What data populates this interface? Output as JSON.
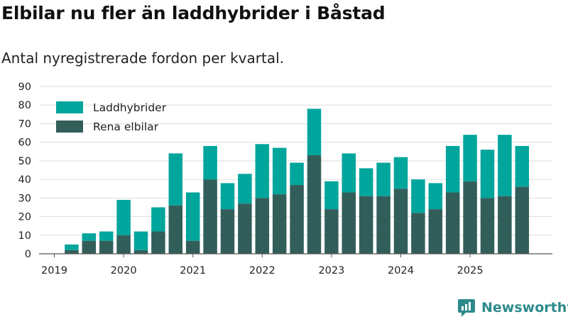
{
  "header": {
    "title": "Elbilar nu fler än laddhybrider i Båstad",
    "subtitle": "Antal nyregistrerade fordon per kvartal."
  },
  "brand": {
    "name": "Newsworthy",
    "icon": "newsworthy-logo-icon"
  },
  "colors": {
    "phev": "#00a59c",
    "bev": "#325e5a",
    "grid": "#dddddd",
    "axis": "#555555",
    "brand": "#2e8a8a"
  },
  "chart_data": {
    "type": "bar",
    "stacked": true,
    "title": "Elbilar nu fler än laddhybrider i Båstad",
    "subtitle": "Antal nyregistrerade fordon per kvartal.",
    "xlabel": "",
    "ylabel": "",
    "ylim": [
      0,
      90
    ],
    "yticks": [
      0,
      10,
      20,
      30,
      40,
      50,
      60,
      70,
      80,
      90
    ],
    "year_labels": [
      "2019",
      "2020",
      "2021",
      "2022",
      "2023",
      "2024",
      "2025"
    ],
    "legend_position": "top-left",
    "grid": true,
    "categories": [
      "2019 Q1",
      "2019 Q2",
      "2019 Q3",
      "2019 Q4",
      "2020 Q1",
      "2020 Q2",
      "2020 Q3",
      "2020 Q4",
      "2021 Q1",
      "2021 Q2",
      "2021 Q3",
      "2021 Q4",
      "2022 Q1",
      "2022 Q2",
      "2022 Q3",
      "2022 Q4",
      "2023 Q1",
      "2023 Q2",
      "2023 Q3",
      "2023 Q4",
      "2024 Q1",
      "2024 Q2",
      "2024 Q3",
      "2024 Q4",
      "2025 Q1",
      "2025 Q2",
      "2025 Q3",
      "2025 Q4"
    ],
    "series": [
      {
        "name": "Rena elbilar",
        "color": "#325e5a",
        "values": [
          0,
          2,
          7,
          7,
          10,
          2,
          12,
          26,
          7,
          40,
          24,
          27,
          30,
          32,
          37,
          53,
          24,
          33,
          31,
          31,
          35,
          22,
          24,
          33,
          39,
          30,
          31,
          36
        ]
      },
      {
        "name": "Laddhybrider",
        "color": "#00a59c",
        "values": [
          0,
          3,
          4,
          5,
          19,
          10,
          13,
          28,
          26,
          18,
          14,
          16,
          29,
          25,
          12,
          25,
          15,
          21,
          15,
          18,
          17,
          18,
          14,
          25,
          25,
          26,
          33,
          22
        ]
      }
    ],
    "legend": [
      "Laddhybrider",
      "Rena elbilar"
    ]
  }
}
